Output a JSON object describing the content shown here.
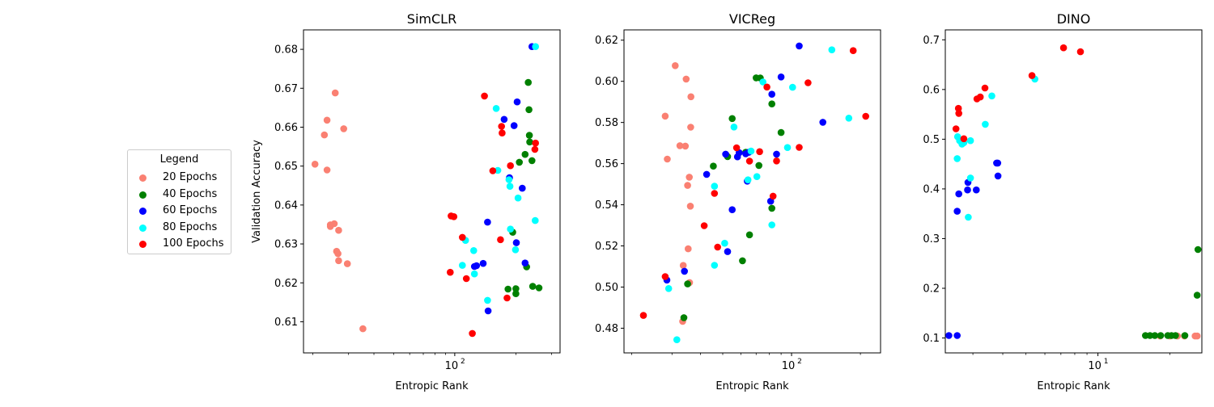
{
  "legend": {
    "title": "Legend",
    "items": [
      {
        "label": "20 Epochs",
        "color": "#fa8072"
      },
      {
        "label": "40 Epochs",
        "color": "#008000"
      },
      {
        "label": "60 Epochs",
        "color": "#0000ff"
      },
      {
        "label": "80 Epochs",
        "color": "#00ffff"
      },
      {
        "label": "100 Epochs",
        "color": "#ff0000"
      }
    ]
  },
  "chart_data": [
    {
      "type": "scatter",
      "title": "SimCLR",
      "xlabel": "Entropic Rank",
      "ylabel": "Validation Accuracy",
      "xscale": "log",
      "xlim": [
        18,
        330
      ],
      "ylim": [
        0.602,
        0.685
      ],
      "yticks": [
        0.61,
        0.62,
        0.63,
        0.64,
        0.65,
        0.66,
        0.67,
        0.68
      ],
      "xticks": [
        {
          "value": 100,
          "label": "10^2"
        }
      ],
      "series": [
        {
          "color": "#fa8072",
          "points": [
            [
              20.5,
              0.6505
            ],
            [
              22.8,
              0.658
            ],
            [
              23.5,
              0.6618
            ],
            [
              23.5,
              0.649
            ],
            [
              24.4,
              0.6345
            ],
            [
              24.4,
              0.6349
            ],
            [
              25.5,
              0.6352
            ],
            [
              25.8,
              0.6688
            ],
            [
              26.2,
              0.6281
            ],
            [
              26.6,
              0.6275
            ],
            [
              26.8,
              0.6257
            ],
            [
              26.8,
              0.6335
            ],
            [
              28.4,
              0.6596
            ],
            [
              29.6,
              0.6249
            ],
            [
              35.3,
              0.6082
            ]
          ]
        },
        {
          "color": "#008000",
          "points": [
            [
              183,
              0.6184
            ],
            [
              200,
              0.6185
            ],
            [
              200,
              0.6172
            ],
            [
              193,
              0.633
            ],
            [
              208,
              0.651
            ],
            [
              222,
              0.653
            ],
            [
              226,
              0.6241
            ],
            [
              230,
              0.6715
            ],
            [
              232,
              0.6645
            ],
            [
              233,
              0.6579
            ],
            [
              234,
              0.6562
            ],
            [
              240,
              0.6514
            ],
            [
              242,
              0.6191
            ],
            [
              260,
              0.6187
            ]
          ]
        },
        {
          "color": "#0000ff",
          "points": [
            [
              146,
              0.6128
            ],
            [
              125,
              0.6242
            ],
            [
              128,
              0.6244
            ],
            [
              138,
              0.625
            ],
            [
              145,
              0.6356
            ],
            [
              175,
              0.662
            ],
            [
              186,
              0.647
            ],
            [
              196,
              0.6604
            ],
            [
              201,
              0.6303
            ],
            [
              203,
              0.6665
            ],
            [
              215,
              0.6443
            ],
            [
              222,
              0.6251
            ],
            [
              240,
              0.6807
            ]
          ]
        },
        {
          "color": "#00ffff",
          "points": [
            [
              109,
              0.6245
            ],
            [
              113,
              0.6309
            ],
            [
              125,
              0.6223
            ],
            [
              124,
              0.6283
            ],
            [
              145,
              0.6155
            ],
            [
              160,
              0.6648
            ],
            [
              163,
              0.6489
            ],
            [
              185,
              0.6465
            ],
            [
              187,
              0.6448
            ],
            [
              188,
              0.6338
            ],
            [
              199,
              0.6285
            ],
            [
              205,
              0.6418
            ],
            [
              249,
              0.636
            ],
            [
              250,
              0.6807
            ]
          ]
        },
        {
          "color": "#ff0000",
          "points": [
            [
              95,
              0.6227
            ],
            [
              96,
              0.6372
            ],
            [
              99,
              0.637
            ],
            [
              109,
              0.6317
            ],
            [
              114,
              0.6211
            ],
            [
              122,
              0.607
            ],
            [
              140,
              0.668
            ],
            [
              154,
              0.6488
            ],
            [
              168,
              0.6311
            ],
            [
              170,
              0.6602
            ],
            [
              171,
              0.6585
            ],
            [
              181,
              0.6161
            ],
            [
              188,
              0.6501
            ],
            [
              248,
              0.6543
            ],
            [
              250,
              0.6559
            ]
          ]
        }
      ]
    },
    {
      "type": "scatter",
      "title": "VICReg",
      "xlabel": "Entropic Rank",
      "ylabel": "",
      "xscale": "log",
      "xlim": [
        18.5,
        245
      ],
      "ylim": [
        0.468,
        0.625
      ],
      "yticks": [
        0.48,
        0.5,
        0.52,
        0.54,
        0.56,
        0.58,
        0.6,
        0.62
      ],
      "xticks": [
        {
          "value": 100,
          "label": "10^2"
        }
      ],
      "series": [
        {
          "color": "#fa8072",
          "points": [
            [
              28,
              0.5831
            ],
            [
              28.6,
              0.5622
            ],
            [
              31,
              0.6076
            ],
            [
              32.5,
              0.5687
            ],
            [
              34.3,
              0.5685
            ],
            [
              34.6,
              0.6011
            ],
            [
              35.1,
              0.5494
            ],
            [
              35.3,
              0.5186
            ],
            [
              35.7,
              0.5534
            ],
            [
              35.8,
              0.5022
            ],
            [
              36.1,
              0.5393
            ],
            [
              36.2,
              0.5777
            ],
            [
              36.3,
              0.5925
            ],
            [
              33.6,
              0.5105
            ],
            [
              33.4,
              0.4833
            ]
          ]
        },
        {
          "color": "#008000",
          "points": [
            [
              33.8,
              0.4851
            ],
            [
              35.1,
              0.5015
            ],
            [
              45.5,
              0.5588
            ],
            [
              52.5,
              0.5634
            ],
            [
              55,
              0.5819
            ],
            [
              61,
              0.5128
            ],
            [
              63,
              0.5655
            ],
            [
              65.5,
              0.5254
            ],
            [
              70,
              0.6017
            ],
            [
              73,
              0.6016
            ],
            [
              72,
              0.5591
            ],
            [
              82,
              0.5383
            ],
            [
              82,
              0.589
            ],
            [
              90,
              0.5751
            ]
          ]
        },
        {
          "color": "#0000ff",
          "points": [
            [
              28.5,
              0.5034
            ],
            [
              34,
              0.5077
            ],
            [
              42.5,
              0.5548
            ],
            [
              51.5,
              0.5646
            ],
            [
              52.5,
              0.5172
            ],
            [
              55,
              0.5376
            ],
            [
              58,
              0.5633
            ],
            [
              59,
              0.5653
            ],
            [
              63,
              0.5648
            ],
            [
              64,
              0.5515
            ],
            [
              65,
              0.5655
            ],
            [
              81,
              0.5417
            ],
            [
              82,
              0.5937
            ],
            [
              86,
              0.5646
            ],
            [
              90,
              0.6021
            ],
            [
              108,
              0.6172
            ],
            [
              137,
              0.5801
            ]
          ]
        },
        {
          "color": "#00ffff",
          "points": [
            [
              29,
              0.4993
            ],
            [
              31.5,
              0.4744
            ],
            [
              46,
              0.5106
            ],
            [
              46,
              0.549
            ],
            [
              51,
              0.5213
            ],
            [
              56,
              0.5778
            ],
            [
              64.5,
              0.5521
            ],
            [
              66.5,
              0.5661
            ],
            [
              70.5,
              0.5537
            ],
            [
              75,
              0.5997
            ],
            [
              82,
              0.5302
            ],
            [
              96,
              0.5678
            ],
            [
              101,
              0.5971
            ],
            [
              150,
              0.6153
            ],
            [
              178,
              0.5821
            ]
          ]
        },
        {
          "color": "#ff0000",
          "points": [
            [
              22.5,
              0.4862
            ],
            [
              28,
              0.5051
            ],
            [
              41.5,
              0.5298
            ],
            [
              46,
              0.5455
            ],
            [
              47.5,
              0.5194
            ],
            [
              57.5,
              0.5677
            ],
            [
              65.5,
              0.5612
            ],
            [
              72.5,
              0.5658
            ],
            [
              78,
              0.5972
            ],
            [
              83,
              0.5442
            ],
            [
              86,
              0.5613
            ],
            [
              108,
              0.5679
            ],
            [
              118,
              0.5993
            ],
            [
              186,
              0.6149
            ],
            [
              211,
              0.583
            ]
          ]
        }
      ]
    },
    {
      "type": "scatter",
      "title": "DINO",
      "xlabel": "Entropic Rank",
      "ylabel": "",
      "xscale": "log",
      "xlim": [
        2.3,
        27.2
      ],
      "ylim": [
        0.07,
        0.72
      ],
      "yticks": [
        0.1,
        0.2,
        0.3,
        0.4,
        0.5,
        0.6,
        0.7
      ],
      "xticks": [
        {
          "value": 10,
          "label": "10^1"
        }
      ],
      "series": [
        {
          "color": "#fa8072",
          "points": [
            [
              18.2,
              0.104
            ],
            [
              20,
              0.104
            ],
            [
              21.5,
              0.104
            ],
            [
              23,
              0.104
            ],
            [
              25.5,
              0.104
            ],
            [
              26,
              0.104
            ]
          ]
        },
        {
          "color": "#008000",
          "points": [
            [
              15.8,
              0.105
            ],
            [
              16.5,
              0.105
            ],
            [
              17.3,
              0.105
            ],
            [
              18.3,
              0.105
            ],
            [
              19.6,
              0.105
            ],
            [
              20.3,
              0.105
            ],
            [
              21.1,
              0.105
            ],
            [
              23.1,
              0.105
            ],
            [
              26,
              0.186
            ],
            [
              26.2,
              0.278
            ]
          ]
        },
        {
          "color": "#0000ff",
          "points": [
            [
              2.38,
              0.105
            ],
            [
              2.58,
              0.105
            ],
            [
              2.58,
              0.355
            ],
            [
              2.62,
              0.39
            ],
            [
              2.85,
              0.398
            ],
            [
              2.86,
              0.413
            ],
            [
              3.1,
              0.398
            ],
            [
              3.77,
              0.452
            ],
            [
              3.81,
              0.452
            ],
            [
              3.82,
              0.426
            ]
          ]
        },
        {
          "color": "#00ffff",
          "points": [
            [
              2.58,
              0.461
            ],
            [
              2.59,
              0.505
            ],
            [
              2.64,
              0.497
            ],
            [
              2.7,
              0.49
            ],
            [
              2.75,
              0.493
            ],
            [
              2.87,
              0.343
            ],
            [
              2.93,
              0.422
            ],
            [
              2.93,
              0.497
            ],
            [
              3.38,
              0.53
            ],
            [
              3.6,
              0.587
            ],
            [
              5.45,
              0.621
            ]
          ]
        },
        {
          "color": "#ff0000",
          "points": [
            [
              2.55,
              0.521
            ],
            [
              2.61,
              0.562
            ],
            [
              2.62,
              0.552
            ],
            [
              2.75,
              0.501
            ],
            [
              3.12,
              0.581
            ],
            [
              3.22,
              0.585
            ],
            [
              3.37,
              0.603
            ],
            [
              5.3,
              0.628
            ],
            [
              7.18,
              0.684
            ],
            [
              8.45,
              0.676
            ]
          ]
        }
      ]
    }
  ]
}
